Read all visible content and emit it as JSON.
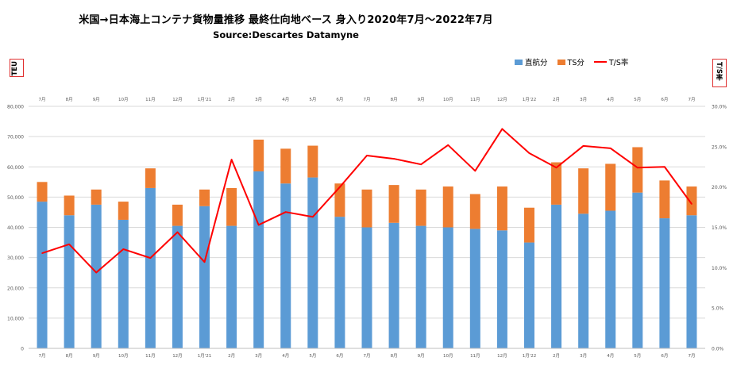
{
  "chart_data": {
    "type": "bar",
    "stacked": true,
    "title": "米国→日本海上コンテナ貨物量推移 最終仕向地ベース 身入り2020年7月～2022年7月",
    "subtitle": "Source:Descartes Datamyne",
    "ylabel": "TEU",
    "y2label": "T/S率",
    "ylim": [
      0,
      80000
    ],
    "y2lim": [
      0,
      30
    ],
    "y_ticks": [
      "0",
      "10,000",
      "20,000",
      "30,000",
      "40,000",
      "50,000",
      "60,000",
      "70,000",
      "80,000"
    ],
    "y2_ticks": [
      "0.0%",
      "5.0%",
      "10.0%",
      "15.0%",
      "20.0%",
      "25.0%",
      "30.0%"
    ],
    "grid": true,
    "legend_position": "top-right",
    "categories": [
      "7月",
      "8月",
      "9月",
      "10月",
      "11月",
      "12月",
      "1月'21",
      "2月",
      "3月",
      "4月",
      "5月",
      "6月",
      "7月",
      "8月",
      "9月",
      "10月",
      "11月",
      "12月",
      "1月'22",
      "2月",
      "3月",
      "4月",
      "5月",
      "6月",
      "7月"
    ],
    "series": [
      {
        "name": "直航分",
        "type": "bar",
        "color": "#5b9bd5",
        "values": [
          48500,
          44000,
          47500,
          42500,
          53000,
          40500,
          47000,
          40500,
          58500,
          54500,
          56500,
          43500,
          40000,
          41500,
          40500,
          40000,
          39500,
          39000,
          35000,
          47500,
          44500,
          45500,
          51500,
          43000,
          44000
        ]
      },
      {
        "name": "TS分",
        "type": "bar",
        "color": "#ed7d31",
        "values": [
          6500,
          6500,
          5000,
          6000,
          6500,
          7000,
          5500,
          12500,
          10500,
          11500,
          10500,
          11000,
          12500,
          12500,
          12000,
          13500,
          11500,
          14500,
          11500,
          14000,
          15000,
          15500,
          15000,
          12500,
          9500
        ]
      },
      {
        "name": "T/S率",
        "type": "line",
        "axis": "right",
        "color": "#ff0000",
        "values": [
          11.8,
          12.9,
          9.4,
          12.3,
          11.2,
          14.4,
          10.7,
          23.4,
          15.3,
          16.9,
          16.3,
          20.0,
          23.9,
          23.5,
          22.8,
          25.2,
          22.0,
          27.2,
          24.2,
          22.4,
          25.1,
          24.8,
          22.4,
          22.5,
          17.9
        ]
      }
    ]
  }
}
